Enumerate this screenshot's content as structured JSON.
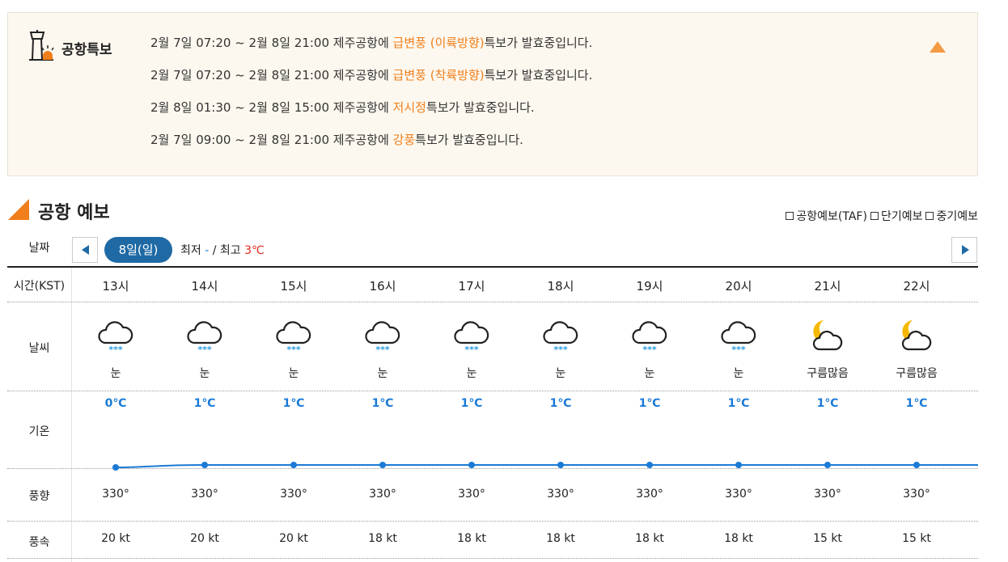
{
  "warning": {
    "title": "공항특보",
    "lines": [
      {
        "pre": "2월 7일 07:20 ~ 2월 8일 21:00 제주공항에 ",
        "hl": "급변풍 (이륙방향)",
        "post": "특보가 발효중입니다."
      },
      {
        "pre": "2월 7일 07:20 ~ 2월 8일 21:00 제주공항에 ",
        "hl": "급변풍 (착륙방향)",
        "post": "특보가 발효중입니다."
      },
      {
        "pre": "2월 8일 01:30 ~ 2월 8일 15:00 제주공항에 ",
        "hl": "저시정",
        "post": "특보가 발효중입니다."
      },
      {
        "pre": "2월 7일 09:00 ~ 2월 8일 21:00 제주공항에 ",
        "hl": "강풍",
        "post": "특보가 발효중입니다."
      }
    ],
    "highlight_color": "#f07e1b",
    "toggle_icon": "triangle-up-icon"
  },
  "forecast": {
    "title": "공항 예보",
    "legend": [
      "공항예보(TAF)",
      "단기예보",
      "중기예보"
    ],
    "date_label": "날짜",
    "date_value": "8일(일)",
    "min_label": "최저",
    "min_value": "-",
    "sep": "/",
    "max_label": "최고",
    "max_value": "3℃",
    "row_labels": {
      "time": "시간(KST)",
      "weather": "날씨",
      "temp": "기온",
      "wind_dir": "풍향",
      "wind_speed": "풍속"
    },
    "columns": [
      {
        "time": "13시",
        "weather": "눈",
        "icon": "snow-cloud-icon",
        "temp": "0℃",
        "temp_value": 0,
        "wind_dir": "330°",
        "wind_speed": "20 kt"
      },
      {
        "time": "14시",
        "weather": "눈",
        "icon": "snow-cloud-icon",
        "temp": "1℃",
        "temp_value": 1,
        "wind_dir": "330°",
        "wind_speed": "20 kt"
      },
      {
        "time": "15시",
        "weather": "눈",
        "icon": "snow-cloud-icon",
        "temp": "1℃",
        "temp_value": 1,
        "wind_dir": "330°",
        "wind_speed": "20 kt"
      },
      {
        "time": "16시",
        "weather": "눈",
        "icon": "snow-cloud-icon",
        "temp": "1℃",
        "temp_value": 1,
        "wind_dir": "330°",
        "wind_speed": "18 kt"
      },
      {
        "time": "17시",
        "weather": "눈",
        "icon": "snow-cloud-icon",
        "temp": "1℃",
        "temp_value": 1,
        "wind_dir": "330°",
        "wind_speed": "18 kt"
      },
      {
        "time": "18시",
        "weather": "눈",
        "icon": "snow-cloud-icon",
        "temp": "1℃",
        "temp_value": 1,
        "wind_dir": "330°",
        "wind_speed": "18 kt"
      },
      {
        "time": "19시",
        "weather": "눈",
        "icon": "snow-cloud-icon",
        "temp": "1℃",
        "temp_value": 1,
        "wind_dir": "330°",
        "wind_speed": "18 kt"
      },
      {
        "time": "20시",
        "weather": "눈",
        "icon": "snow-cloud-icon",
        "temp": "1℃",
        "temp_value": 1,
        "wind_dir": "330°",
        "wind_speed": "18 kt"
      },
      {
        "time": "21시",
        "weather": "구름많음",
        "icon": "moon-cloud-icon",
        "temp": "1℃",
        "temp_value": 1,
        "wind_dir": "330°",
        "wind_speed": "15 kt"
      },
      {
        "time": "22시",
        "weather": "구름많음",
        "icon": "moon-cloud-icon",
        "temp": "1℃",
        "temp_value": 1,
        "wind_dir": "330°",
        "wind_speed": "15 kt"
      }
    ],
    "accent_color": "#1f6aa5",
    "temp_color": "#1a7ad6"
  }
}
